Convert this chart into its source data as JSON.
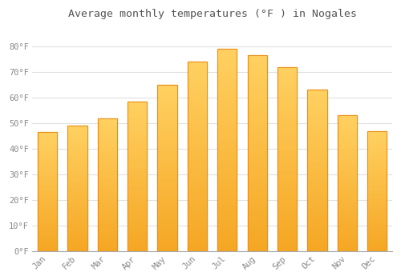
{
  "title": "Average monthly temperatures (°F ) in Nogales",
  "months": [
    "Jan",
    "Feb",
    "Mar",
    "Apr",
    "May",
    "Jun",
    "Jul",
    "Aug",
    "Sep",
    "Oct",
    "Nov",
    "Dec"
  ],
  "values": [
    46.5,
    49,
    52,
    58.5,
    65,
    74,
    79,
    76.5,
    72,
    63,
    53,
    47
  ],
  "bar_color_top": "#FFD060",
  "bar_color_bottom": "#F5A623",
  "bar_edge_color": "#E89020",
  "background_color": "#FFFFFF",
  "grid_color": "#E0E0E0",
  "tick_label_color": "#888888",
  "title_color": "#555555",
  "ylim": [
    0,
    88
  ],
  "yticks": [
    0,
    10,
    20,
    30,
    40,
    50,
    60,
    70,
    80
  ],
  "ytick_labels": [
    "0°F",
    "10°F",
    "20°F",
    "30°F",
    "40°F",
    "50°F",
    "60°F",
    "70°F",
    "80°F"
  ],
  "bar_width": 0.65,
  "figsize": [
    5.0,
    3.5
  ],
  "dpi": 100
}
